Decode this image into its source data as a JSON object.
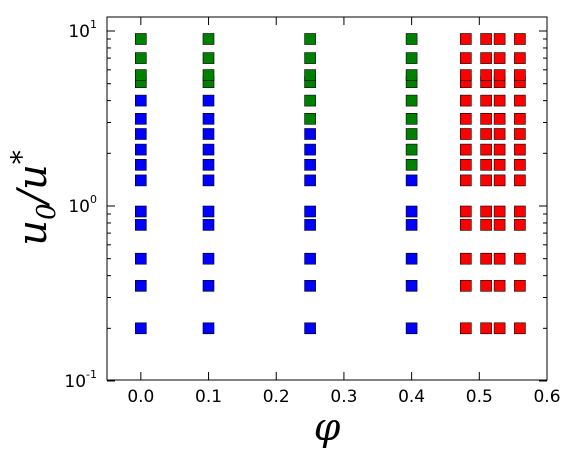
{
  "chart_data": {
    "type": "scatter",
    "title": "",
    "xlabel": "φ",
    "ylabel_main": "u",
    "ylabel_sub": "0",
    "ylabel_slash": "/u",
    "ylabel_sup": "*",
    "x_scale": "linear",
    "y_scale": "log",
    "xlim": [
      -0.05,
      0.6
    ],
    "ylim": [
      0.1,
      12
    ],
    "x_ticks": [
      0.0,
      0.1,
      0.2,
      0.3,
      0.4,
      0.5,
      0.6
    ],
    "x_tick_labels": [
      "0.0",
      "0.1",
      "0.2",
      "0.3",
      "0.4",
      "0.5",
      "0.6"
    ],
    "y_ticks": [
      {
        "value": 0.1,
        "base": "10",
        "exp": "-1"
      },
      {
        "value": 1,
        "base": "10",
        "exp": "0"
      },
      {
        "value": 10,
        "base": "10",
        "exp": "1"
      }
    ],
    "grid": false,
    "legend": "none",
    "marker": "square",
    "series": [
      {
        "color": "#0000ff",
        "points": [
          [
            0,
            0.2
          ],
          [
            0,
            0.35
          ],
          [
            0,
            0.5
          ],
          [
            0,
            0.78
          ],
          [
            0,
            0.93
          ],
          [
            0,
            1.4
          ],
          [
            0,
            1.72
          ],
          [
            0,
            2.1
          ],
          [
            0,
            2.58
          ],
          [
            0,
            3.15
          ],
          [
            0,
            4.0
          ],
          [
            0.1,
            0.2
          ],
          [
            0.1,
            0.35
          ],
          [
            0.1,
            0.5
          ],
          [
            0.1,
            0.78
          ],
          [
            0.1,
            0.93
          ],
          [
            0.1,
            1.4
          ],
          [
            0.1,
            1.72
          ],
          [
            0.1,
            2.1
          ],
          [
            0.1,
            2.58
          ],
          [
            0.1,
            3.15
          ],
          [
            0.1,
            4.0
          ],
          [
            0.25,
            0.2
          ],
          [
            0.25,
            0.35
          ],
          [
            0.25,
            0.5
          ],
          [
            0.25,
            0.78
          ],
          [
            0.25,
            0.93
          ],
          [
            0.25,
            1.4
          ],
          [
            0.25,
            1.72
          ],
          [
            0.25,
            2.1
          ],
          [
            0.25,
            2.58
          ],
          [
            0.4,
            0.2
          ],
          [
            0.4,
            0.35
          ],
          [
            0.4,
            0.5
          ],
          [
            0.4,
            0.78
          ],
          [
            0.4,
            0.93
          ],
          [
            0.4,
            1.4
          ]
        ]
      },
      {
        "color": "#008000",
        "points": [
          [
            0,
            5.1
          ],
          [
            0,
            5.6
          ],
          [
            0,
            7.0
          ],
          [
            0,
            9.0
          ],
          [
            0.1,
            5.1
          ],
          [
            0.1,
            5.6
          ],
          [
            0.1,
            7.0
          ],
          [
            0.1,
            9.0
          ],
          [
            0.25,
            3.15
          ],
          [
            0.25,
            4.0
          ],
          [
            0.25,
            5.1
          ],
          [
            0.25,
            5.6
          ],
          [
            0.25,
            7.0
          ],
          [
            0.25,
            9.0
          ],
          [
            0.4,
            1.72
          ],
          [
            0.4,
            2.1
          ],
          [
            0.4,
            2.58
          ],
          [
            0.4,
            3.15
          ],
          [
            0.4,
            4.0
          ],
          [
            0.4,
            5.1
          ],
          [
            0.4,
            5.6
          ],
          [
            0.4,
            7.0
          ],
          [
            0.4,
            9.0
          ]
        ]
      },
      {
        "color": "#ff0000",
        "points": [
          [
            0.48,
            0.2
          ],
          [
            0.48,
            0.35
          ],
          [
            0.48,
            0.5
          ],
          [
            0.48,
            0.78
          ],
          [
            0.48,
            0.93
          ],
          [
            0.48,
            1.4
          ],
          [
            0.48,
            1.72
          ],
          [
            0.48,
            2.1
          ],
          [
            0.48,
            2.58
          ],
          [
            0.48,
            3.15
          ],
          [
            0.48,
            4.0
          ],
          [
            0.48,
            5.1
          ],
          [
            0.48,
            5.6
          ],
          [
            0.48,
            7.0
          ],
          [
            0.48,
            9.0
          ],
          [
            0.51,
            0.2
          ],
          [
            0.51,
            0.35
          ],
          [
            0.51,
            0.5
          ],
          [
            0.51,
            0.78
          ],
          [
            0.51,
            0.93
          ],
          [
            0.51,
            1.4
          ],
          [
            0.51,
            1.72
          ],
          [
            0.51,
            2.1
          ],
          [
            0.51,
            2.58
          ],
          [
            0.51,
            3.15
          ],
          [
            0.51,
            4.0
          ],
          [
            0.51,
            5.1
          ],
          [
            0.51,
            5.6
          ],
          [
            0.51,
            7.0
          ],
          [
            0.51,
            9.0
          ],
          [
            0.53,
            0.2
          ],
          [
            0.53,
            0.35
          ],
          [
            0.53,
            0.5
          ],
          [
            0.53,
            0.78
          ],
          [
            0.53,
            0.93
          ],
          [
            0.53,
            1.4
          ],
          [
            0.53,
            1.72
          ],
          [
            0.53,
            2.1
          ],
          [
            0.53,
            2.58
          ],
          [
            0.53,
            3.15
          ],
          [
            0.53,
            4.0
          ],
          [
            0.53,
            5.1
          ],
          [
            0.53,
            5.6
          ],
          [
            0.53,
            7.0
          ],
          [
            0.53,
            9.0
          ],
          [
            0.56,
            0.2
          ],
          [
            0.56,
            0.35
          ],
          [
            0.56,
            0.5
          ],
          [
            0.56,
            0.78
          ],
          [
            0.56,
            0.93
          ],
          [
            0.56,
            1.4
          ],
          [
            0.56,
            1.72
          ],
          [
            0.56,
            2.1
          ],
          [
            0.56,
            2.58
          ],
          [
            0.56,
            3.15
          ],
          [
            0.56,
            4.0
          ],
          [
            0.56,
            5.1
          ],
          [
            0.56,
            5.6
          ],
          [
            0.56,
            7.0
          ],
          [
            0.56,
            9.0
          ]
        ]
      }
    ]
  }
}
